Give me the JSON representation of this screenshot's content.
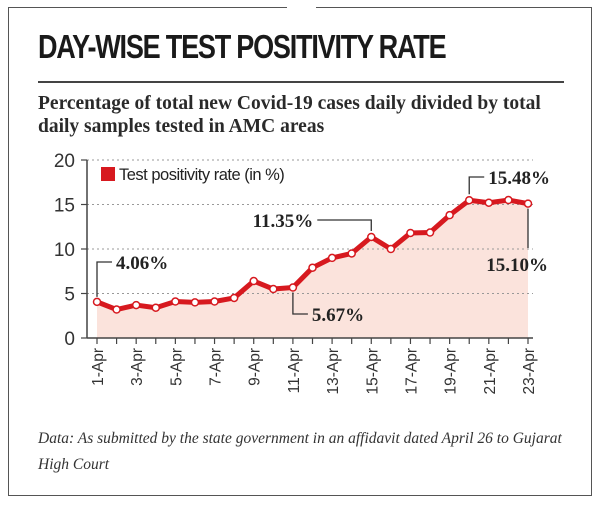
{
  "title": "DAY-WISE TEST POSITIVITY RATE",
  "subtitle": "Percentage of total new Covid-19 cases daily divided by total daily samples tested in AMC areas",
  "footnote": "Data: As submitted by the state government in an affidavit dated April 26 to Gujarat High Court",
  "chart_data": {
    "type": "area",
    "title": "",
    "xlabel": "",
    "ylabel": "",
    "ylim": [
      0,
      20
    ],
    "yticks": [
      0,
      5,
      10,
      15,
      20
    ],
    "grid": "horizontal dotted",
    "legend": "top-left",
    "x": [
      "1-Apr",
      "2-Apr",
      "3-Apr",
      "4-Apr",
      "5-Apr",
      "6-Apr",
      "7-Apr",
      "8-Apr",
      "9-Apr",
      "10-Apr",
      "11-Apr",
      "12-Apr",
      "13-Apr",
      "14-Apr",
      "15-Apr",
      "16-Apr",
      "17-Apr",
      "18-Apr",
      "19-Apr",
      "20-Apr",
      "21-Apr",
      "22-Apr",
      "23-Apr"
    ],
    "xticklabels": [
      "1-Apr",
      "",
      "3-Apr",
      "",
      "5-Apr",
      "",
      "7-Apr",
      "",
      "9-Apr",
      "",
      "11-Apr",
      "",
      "13-Apr",
      "",
      "15-Apr",
      "",
      "17-Apr",
      "",
      "19-Apr",
      "",
      "21-Apr",
      "",
      "23-Apr"
    ],
    "series": [
      {
        "name": "Test positivity rate (in %)",
        "color": "#d7191f",
        "fill": "#fbe3dc",
        "values": [
          4.06,
          3.2,
          3.7,
          3.4,
          4.1,
          4.0,
          4.1,
          4.5,
          6.4,
          5.5,
          5.67,
          7.9,
          9.0,
          9.5,
          11.35,
          10.0,
          11.8,
          11.85,
          13.8,
          15.48,
          15.2,
          15.5,
          15.1
        ]
      }
    ],
    "annotations": [
      {
        "x": "1-Apr",
        "label": "4.06%"
      },
      {
        "x": "11-Apr",
        "label": "5.67%"
      },
      {
        "x": "15-Apr",
        "label": "11.35%"
      },
      {
        "x": "20-Apr",
        "label": "15.48%"
      },
      {
        "x": "23-Apr",
        "label": "15.10%"
      }
    ]
  }
}
